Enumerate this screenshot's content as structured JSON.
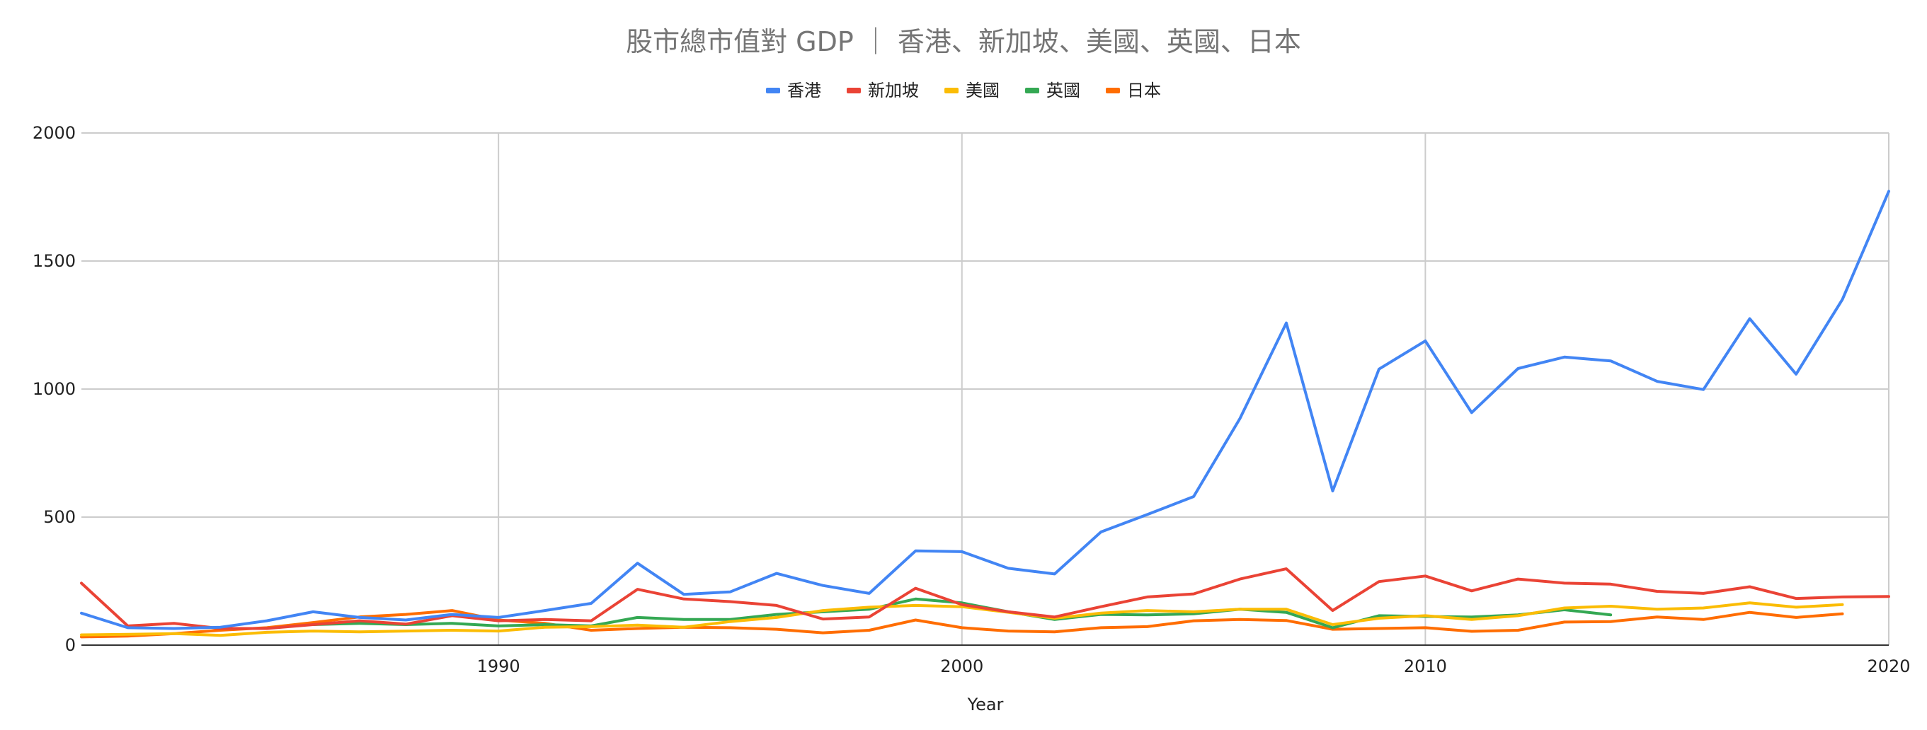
{
  "chart_data": {
    "type": "line",
    "title": "股市總市值對 GDP ｜ 香港、新加坡、美國、英國、日本",
    "xlabel": "Year",
    "ylabel": "",
    "xlim": [
      1981,
      2020
    ],
    "ylim": [
      0,
      2000
    ],
    "x_ticks": [
      1990,
      2000,
      2010,
      2020
    ],
    "y_ticks": [
      0,
      500,
      1000,
      1500,
      2000
    ],
    "grid": true,
    "legend_position": "top",
    "x": [
      1981,
      1982,
      1983,
      1984,
      1985,
      1986,
      1987,
      1988,
      1989,
      1990,
      1991,
      1992,
      1993,
      1994,
      1995,
      1996,
      1997,
      1998,
      1999,
      2000,
      2001,
      2002,
      2003,
      2004,
      2005,
      2006,
      2007,
      2008,
      2009,
      2010,
      2011,
      2012,
      2013,
      2014,
      2015,
      2016,
      2017,
      2018,
      2019,
      2020
    ],
    "series": [
      {
        "name": "香港",
        "color": "#4285f4",
        "values": [
          125,
          68,
          65,
          70,
          95,
          130,
          108,
          98,
          120,
          108,
          135,
          163,
          320,
          198,
          208,
          280,
          233,
          202,
          368,
          365,
          300,
          278,
          442,
          510,
          580,
          885,
          1258,
          602,
          1078,
          1188,
          908,
          1080,
          1125,
          1110,
          1030,
          998,
          1275,
          1058,
          1350,
          1772
        ]
      },
      {
        "name": "新加坡",
        "color": "#ea4335",
        "values": [
          242,
          75,
          85,
          65,
          65,
          80,
          95,
          82,
          115,
          95,
          100,
          95,
          218,
          180,
          170,
          155,
          102,
          110,
          222,
          158,
          130,
          110,
          150,
          188,
          200,
          258,
          298,
          135,
          248,
          270,
          212,
          258,
          242,
          238,
          210,
          202,
          228,
          182,
          188,
          190
        ]
      },
      {
        "name": "美國",
        "color": "#fbbc04",
        "values": [
          40,
          42,
          45,
          38,
          50,
          55,
          52,
          55,
          58,
          55,
          70,
          72,
          78,
          70,
          92,
          108,
          135,
          148,
          155,
          150,
          128,
          105,
          125,
          135,
          130,
          140,
          140,
          80,
          105,
          115,
          100,
          115,
          145,
          152,
          140,
          145,
          165,
          148,
          158,
          null
        ]
      },
      {
        "name": "英國",
        "color": "#34a853",
        "values": [
          null,
          null,
          null,
          null,
          null,
          80,
          85,
          80,
          85,
          75,
          80,
          75,
          108,
          100,
          100,
          120,
          130,
          140,
          180,
          165,
          130,
          100,
          120,
          118,
          122,
          140,
          128,
          68,
          115,
          112,
          110,
          118,
          138,
          118,
          null,
          null,
          null,
          null,
          null,
          null
        ]
      },
      {
        "name": "日本",
        "color": "#ff6d01",
        "values": [
          32,
          35,
          45,
          58,
          68,
          88,
          110,
          120,
          135,
          98,
          85,
          58,
          65,
          70,
          68,
          62,
          48,
          58,
          98,
          68,
          55,
          52,
          68,
          72,
          95,
          100,
          96,
          62,
          65,
          68,
          54,
          58,
          90,
          92,
          110,
          100,
          128,
          108,
          122,
          null
        ]
      }
    ]
  }
}
